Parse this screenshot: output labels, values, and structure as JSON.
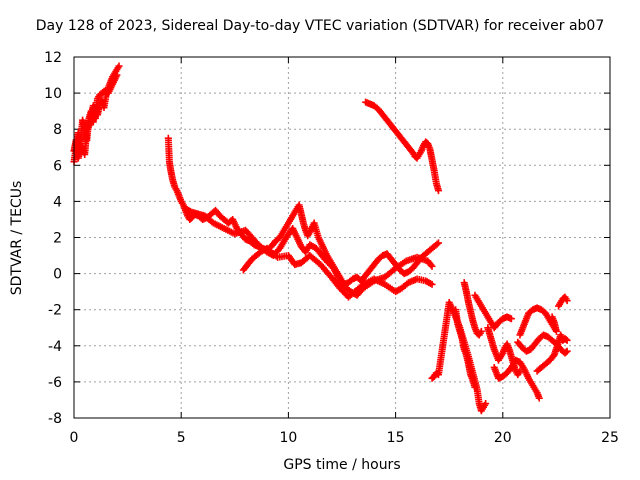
{
  "chart_data": {
    "type": "scatter",
    "title": "Day 128 of 2023, Sidereal Day-to-day VTEC variation (SDTVAR) for receiver ab07",
    "xlabel": "GPS time / hours",
    "ylabel": "SDTVAR / TECUs",
    "xlim": [
      0,
      25
    ],
    "ylim": [
      -8,
      12
    ],
    "xticks": [
      0,
      5,
      10,
      15,
      20,
      25
    ],
    "yticks": [
      -8,
      -6,
      -4,
      -2,
      0,
      2,
      4,
      6,
      8,
      10,
      12
    ],
    "grid": true,
    "marker": "+",
    "color": "#ff0000",
    "series": [
      {
        "points": [
          [
            0.0,
            6.2
          ],
          [
            0.1,
            7.0
          ],
          [
            0.2,
            7.8
          ],
          [
            0.3,
            7.2
          ],
          [
            0.4,
            8.5
          ],
          [
            0.5,
            8.0
          ],
          [
            0.6,
            7.4
          ],
          [
            0.7,
            8.6
          ],
          [
            0.8,
            9.0
          ],
          [
            0.9,
            8.4
          ],
          [
            1.0,
            9.1
          ],
          [
            1.1,
            8.8
          ],
          [
            1.2,
            9.4
          ],
          [
            1.3,
            9.6
          ],
          [
            1.4,
            9.2
          ],
          [
            1.5,
            9.9
          ],
          [
            1.6,
            10.3
          ],
          [
            1.7,
            10.6
          ],
          [
            1.8,
            10.9
          ],
          [
            1.9,
            11.1
          ],
          [
            2.0,
            11.3
          ],
          [
            2.1,
            11.5
          ]
        ]
      },
      {
        "points": [
          [
            0.0,
            6.8
          ],
          [
            0.1,
            7.4
          ],
          [
            0.2,
            6.4
          ],
          [
            0.3,
            6.9
          ],
          [
            0.4,
            7.0
          ],
          [
            0.5,
            6.6
          ],
          [
            0.6,
            7.9
          ],
          [
            0.7,
            8.2
          ],
          [
            0.8,
            8.8
          ],
          [
            0.9,
            9.3
          ],
          [
            1.0,
            8.6
          ],
          [
            1.1,
            9.7
          ],
          [
            1.2,
            9.9
          ],
          [
            1.4,
            10.1
          ],
          [
            1.6,
            10.0
          ],
          [
            1.8,
            10.5
          ],
          [
            2.0,
            11.0
          ]
        ]
      },
      {
        "points": [
          [
            4.4,
            7.5
          ],
          [
            4.45,
            6.2
          ],
          [
            4.5,
            5.8
          ],
          [
            4.6,
            5.2
          ],
          [
            4.7,
            4.8
          ],
          [
            4.8,
            4.6
          ],
          [
            4.9,
            4.3
          ],
          [
            5.0,
            4.0
          ],
          [
            5.1,
            3.8
          ],
          [
            5.2,
            3.5
          ],
          [
            5.3,
            3.2
          ],
          [
            5.4,
            3.0
          ],
          [
            5.5,
            3.1
          ],
          [
            5.6,
            3.3
          ],
          [
            5.8,
            3.2
          ],
          [
            6.0,
            3.0
          ],
          [
            6.2,
            3.1
          ],
          [
            6.4,
            3.3
          ],
          [
            6.6,
            3.5
          ],
          [
            6.8,
            3.2
          ],
          [
            7.0,
            3.0
          ],
          [
            7.2,
            2.8
          ],
          [
            7.4,
            3.0
          ],
          [
            7.6,
            2.5
          ],
          [
            7.8,
            2.2
          ],
          [
            8.0,
            1.9
          ],
          [
            8.2,
            1.8
          ],
          [
            8.4,
            1.6
          ],
          [
            8.6,
            1.5
          ],
          [
            8.8,
            1.4
          ],
          [
            9.0,
            1.3
          ],
          [
            9.2,
            1.5
          ],
          [
            9.4,
            1.8
          ],
          [
            9.6,
            2.0
          ],
          [
            9.8,
            2.4
          ],
          [
            10.0,
            2.8
          ],
          [
            10.2,
            3.2
          ],
          [
            10.4,
            3.6
          ],
          [
            10.5,
            3.8
          ],
          [
            10.6,
            3.3
          ],
          [
            10.7,
            2.8
          ],
          [
            10.8,
            2.4
          ],
          [
            10.9,
            2.1
          ],
          [
            11.0,
            2.3
          ],
          [
            11.2,
            2.8
          ],
          [
            11.4,
            2.0
          ],
          [
            11.6,
            1.5
          ],
          [
            11.8,
            1.0
          ],
          [
            12.0,
            0.6
          ],
          [
            12.2,
            0.2
          ],
          [
            12.4,
            -0.2
          ],
          [
            12.6,
            -0.6
          ],
          [
            12.8,
            -0.5
          ],
          [
            13.0,
            -0.3
          ],
          [
            13.2,
            -0.2
          ],
          [
            13.4,
            -0.4
          ],
          [
            13.6,
            -0.1
          ],
          [
            13.8,
            0.2
          ],
          [
            14.0,
            0.5
          ],
          [
            14.2,
            0.8
          ],
          [
            14.4,
            1.0
          ],
          [
            14.6,
            1.1
          ],
          [
            14.8,
            0.8
          ],
          [
            15.0,
            0.5
          ],
          [
            15.2,
            0.2
          ],
          [
            15.4,
            0.0
          ],
          [
            15.6,
            0.1
          ],
          [
            15.8,
            0.3
          ],
          [
            16.0,
            0.6
          ],
          [
            16.2,
            0.9
          ],
          [
            16.4,
            1.1
          ],
          [
            16.6,
            1.3
          ],
          [
            16.8,
            1.5
          ],
          [
            17.0,
            1.7
          ]
        ]
      },
      {
        "points": [
          [
            5.2,
            3.6
          ],
          [
            5.5,
            3.4
          ],
          [
            5.8,
            3.3
          ],
          [
            6.1,
            3.2
          ],
          [
            6.5,
            2.8
          ],
          [
            7.0,
            2.5
          ],
          [
            7.5,
            2.2
          ],
          [
            8.0,
            2.4
          ],
          [
            8.3,
            2.0
          ],
          [
            8.6,
            1.6
          ],
          [
            9.0,
            1.2
          ],
          [
            9.3,
            1.0
          ],
          [
            9.6,
            1.4
          ],
          [
            9.9,
            2.0
          ],
          [
            10.2,
            2.5
          ],
          [
            10.4,
            2.0
          ],
          [
            10.6,
            1.5
          ],
          [
            10.8,
            1.2
          ],
          [
            11.0,
            1.6
          ],
          [
            11.3,
            1.4
          ],
          [
            11.7,
            0.8
          ],
          [
            12.1,
            0.3
          ],
          [
            12.5,
            -0.6
          ],
          [
            12.9,
            -1.0
          ],
          [
            13.2,
            -1.2
          ],
          [
            13.5,
            -0.8
          ],
          [
            14.0,
            -0.4
          ],
          [
            14.5,
            -0.2
          ],
          [
            15.0,
            0.3
          ],
          [
            15.5,
            0.7
          ],
          [
            16.0,
            0.9
          ],
          [
            16.5,
            0.7
          ],
          [
            16.7,
            0.4
          ]
        ]
      },
      {
        "points": [
          [
            7.9,
            0.2
          ],
          [
            8.1,
            0.5
          ],
          [
            8.3,
            0.8
          ],
          [
            8.5,
            1.0
          ],
          [
            8.7,
            1.2
          ],
          [
            9.0,
            1.4
          ],
          [
            9.5,
            0.9
          ],
          [
            10.0,
            1.0
          ],
          [
            10.3,
            0.5
          ],
          [
            10.6,
            0.6
          ],
          [
            11.0,
            1.0
          ],
          [
            11.5,
            0.5
          ],
          [
            12.0,
            -0.2
          ],
          [
            12.4,
            -0.8
          ],
          [
            12.8,
            -1.3
          ],
          [
            13.1,
            -1.0
          ],
          [
            13.5,
            -0.6
          ],
          [
            14.0,
            -0.3
          ],
          [
            14.5,
            -0.6
          ],
          [
            15.0,
            -1.0
          ],
          [
            15.3,
            -0.8
          ],
          [
            15.6,
            -0.5
          ],
          [
            16.0,
            -0.3
          ],
          [
            16.4,
            -0.4
          ],
          [
            16.7,
            -0.6
          ]
        ]
      },
      {
        "points": [
          [
            13.6,
            9.5
          ],
          [
            13.8,
            9.4
          ],
          [
            14.0,
            9.3
          ],
          [
            14.2,
            9.1
          ],
          [
            14.4,
            8.8
          ],
          [
            14.6,
            8.5
          ],
          [
            14.8,
            8.2
          ],
          [
            15.0,
            7.9
          ],
          [
            15.2,
            7.6
          ],
          [
            15.4,
            7.3
          ],
          [
            15.6,
            7.0
          ],
          [
            15.8,
            6.7
          ],
          [
            15.9,
            6.5
          ],
          [
            16.0,
            6.4
          ],
          [
            16.1,
            6.6
          ],
          [
            16.2,
            6.8
          ],
          [
            16.3,
            7.1
          ],
          [
            16.4,
            7.3
          ],
          [
            16.5,
            7.2
          ],
          [
            16.6,
            6.9
          ],
          [
            16.7,
            6.3
          ],
          [
            16.8,
            5.7
          ],
          [
            16.9,
            5.0
          ],
          [
            17.0,
            4.6
          ]
        ]
      },
      {
        "points": [
          [
            16.7,
            -5.8
          ],
          [
            16.8,
            -5.7
          ],
          [
            16.9,
            -5.5
          ],
          [
            17.0,
            -5.6
          ],
          [
            17.5,
            -1.6
          ],
          [
            17.8,
            -2.4
          ],
          [
            18.0,
            -3.0
          ],
          [
            18.2,
            -3.8
          ],
          [
            18.4,
            -4.6
          ],
          [
            18.6,
            -5.5
          ],
          [
            18.8,
            -6.4
          ],
          [
            18.9,
            -7.2
          ],
          [
            19.0,
            -7.6
          ],
          [
            19.2,
            -7.2
          ]
        ]
      },
      {
        "points": [
          [
            17.8,
            -2.0
          ],
          [
            17.9,
            -2.8
          ],
          [
            18.0,
            -3.2
          ],
          [
            18.1,
            -3.6
          ],
          [
            18.2,
            -4.2
          ],
          [
            18.3,
            -4.5
          ],
          [
            18.4,
            -5.0
          ],
          [
            18.5,
            -5.6
          ],
          [
            18.6,
            -5.9
          ],
          [
            18.7,
            -6.3
          ]
        ]
      },
      {
        "points": [
          [
            18.2,
            -0.5
          ],
          [
            18.3,
            -1.0
          ],
          [
            18.4,
            -1.6
          ],
          [
            18.5,
            -2.1
          ],
          [
            18.6,
            -2.6
          ],
          [
            18.7,
            -3.0
          ],
          [
            18.8,
            -3.3
          ],
          [
            18.9,
            -3.4
          ],
          [
            19.0,
            -3.2
          ]
        ]
      },
      {
        "points": [
          [
            18.7,
            -1.2
          ],
          [
            18.9,
            -1.6
          ],
          [
            19.1,
            -2.0
          ],
          [
            19.3,
            -2.4
          ],
          [
            19.5,
            -2.8
          ],
          [
            19.6,
            -3.0
          ],
          [
            19.8,
            -2.7
          ],
          [
            20.0,
            -2.5
          ],
          [
            20.2,
            -2.4
          ],
          [
            20.4,
            -2.5
          ]
        ]
      },
      {
        "points": [
          [
            19.3,
            -3.0
          ],
          [
            19.4,
            -3.4
          ],
          [
            19.5,
            -3.8
          ],
          [
            19.6,
            -4.2
          ],
          [
            19.7,
            -4.5
          ],
          [
            19.8,
            -4.8
          ],
          [
            19.9,
            -4.6
          ],
          [
            20.0,
            -4.4
          ],
          [
            20.1,
            -4.1
          ],
          [
            20.2,
            -3.9
          ],
          [
            20.3,
            -4.2
          ],
          [
            20.4,
            -4.6
          ],
          [
            20.5,
            -5.0
          ],
          [
            20.6,
            -5.4
          ],
          [
            20.7,
            -5.6
          ],
          [
            20.8,
            -5.4
          ]
        ]
      },
      {
        "points": [
          [
            19.6,
            -5.2
          ],
          [
            19.8,
            -5.8
          ],
          [
            20.0,
            -5.7
          ],
          [
            20.2,
            -5.5
          ],
          [
            20.4,
            -5.2
          ],
          [
            20.6,
            -4.8
          ],
          [
            20.8,
            -4.9
          ],
          [
            21.0,
            -5.3
          ],
          [
            21.2,
            -5.8
          ],
          [
            21.4,
            -6.2
          ],
          [
            21.6,
            -6.6
          ],
          [
            21.7,
            -6.9
          ]
        ]
      },
      {
        "points": [
          [
            20.8,
            -3.4
          ],
          [
            21.0,
            -2.8
          ],
          [
            21.2,
            -2.2
          ],
          [
            21.4,
            -2.0
          ],
          [
            21.6,
            -1.9
          ],
          [
            21.8,
            -2.0
          ],
          [
            22.0,
            -2.2
          ],
          [
            22.2,
            -2.6
          ],
          [
            22.4,
            -3.0
          ],
          [
            22.5,
            -3.2
          ],
          [
            22.4,
            -2.7
          ],
          [
            22.3,
            -2.4
          ]
        ]
      },
      {
        "points": [
          [
            20.7,
            -3.8
          ],
          [
            20.9,
            -4.1
          ],
          [
            21.1,
            -4.3
          ],
          [
            21.3,
            -4.2
          ],
          [
            21.5,
            -3.9
          ],
          [
            21.7,
            -3.6
          ],
          [
            21.9,
            -3.4
          ],
          [
            22.1,
            -3.5
          ],
          [
            22.3,
            -3.7
          ],
          [
            22.5,
            -3.9
          ],
          [
            22.7,
            -4.2
          ],
          [
            22.9,
            -4.4
          ],
          [
            23.0,
            -4.3
          ]
        ]
      },
      {
        "points": [
          [
            21.6,
            -5.4
          ],
          [
            21.8,
            -5.2
          ],
          [
            22.0,
            -5.0
          ],
          [
            22.2,
            -4.8
          ],
          [
            22.4,
            -4.5
          ],
          [
            22.6,
            -3.8
          ],
          [
            22.7,
            -3.4
          ],
          [
            22.8,
            -3.7
          ],
          [
            22.9,
            -3.6
          ],
          [
            23.0,
            -3.7
          ]
        ]
      },
      {
        "points": [
          [
            22.6,
            -1.8
          ],
          [
            22.7,
            -1.6
          ],
          [
            22.8,
            -1.4
          ],
          [
            22.9,
            -1.3
          ],
          [
            23.0,
            -1.5
          ]
        ]
      }
    ]
  }
}
